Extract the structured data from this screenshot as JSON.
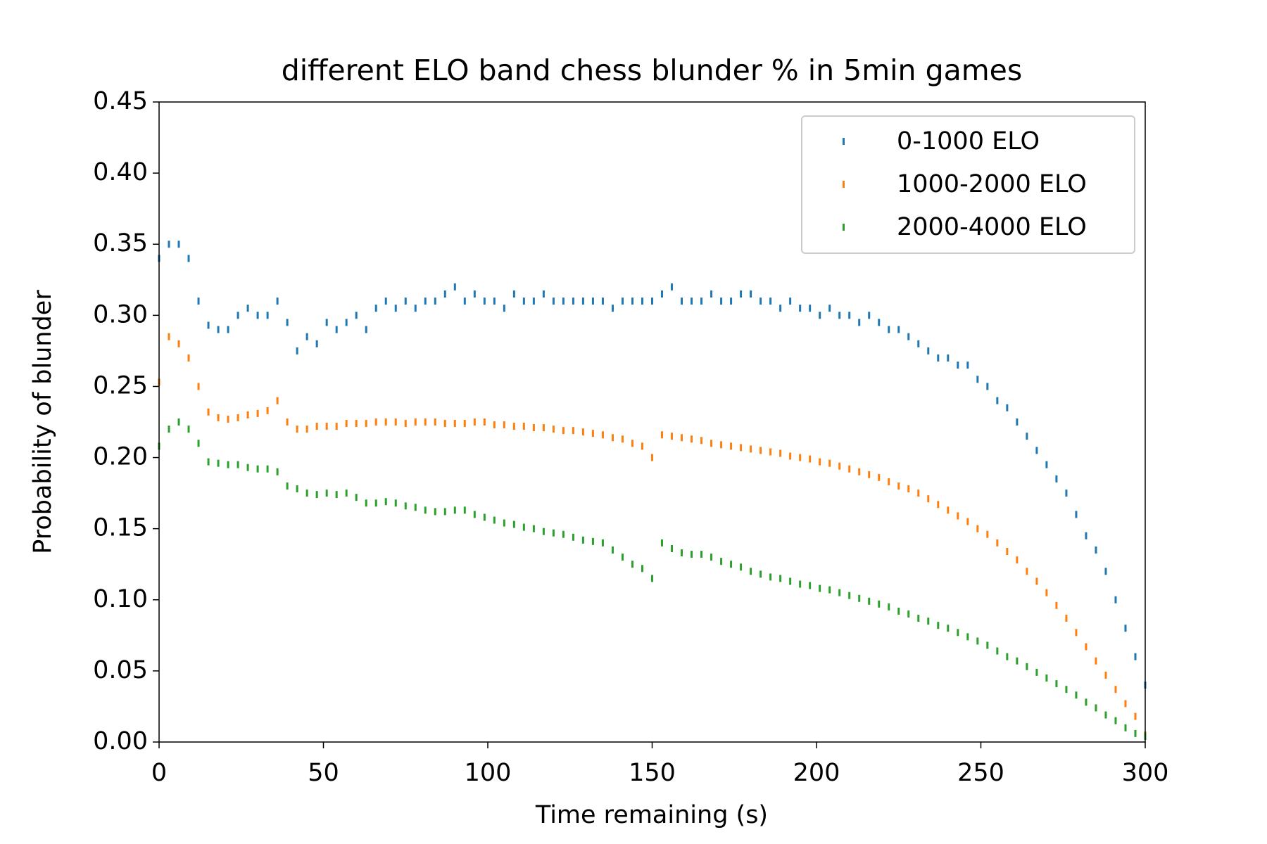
{
  "chart_data": {
    "type": "scatter",
    "title": "different ELO band chess blunder % in 5min games",
    "x_label": "Time remaining (s)",
    "y_label": "Probability of blunder",
    "x": [
      0,
      3,
      6,
      9,
      12,
      15,
      18,
      21,
      24,
      27,
      30,
      33,
      36,
      39,
      42,
      45,
      48,
      51,
      54,
      57,
      60,
      63,
      66,
      69,
      72,
      75,
      78,
      81,
      84,
      87,
      90,
      93,
      96,
      99,
      102,
      105,
      108,
      111,
      114,
      117,
      120,
      123,
      126,
      129,
      132,
      135,
      138,
      141,
      144,
      147,
      150,
      153,
      156,
      159,
      162,
      165,
      168,
      171,
      174,
      177,
      180,
      183,
      186,
      189,
      192,
      195,
      198,
      201,
      204,
      207,
      210,
      213,
      216,
      219,
      222,
      225,
      228,
      231,
      234,
      237,
      240,
      243,
      246,
      249,
      252,
      255,
      258,
      261,
      264,
      267,
      270,
      273,
      276,
      279,
      282,
      285,
      288,
      291,
      294,
      297,
      300
    ],
    "series": [
      {
        "name": "0-1000 ELO",
        "color": "#1f77b4",
        "values": [
          0.34,
          0.35,
          0.35,
          0.34,
          0.31,
          0.293,
          0.29,
          0.29,
          0.3,
          0.305,
          0.3,
          0.3,
          0.31,
          0.295,
          0.275,
          0.285,
          0.28,
          0.295,
          0.29,
          0.295,
          0.3,
          0.29,
          0.305,
          0.31,
          0.305,
          0.31,
          0.305,
          0.31,
          0.31,
          0.315,
          0.32,
          0.31,
          0.315,
          0.31,
          0.31,
          0.305,
          0.315,
          0.31,
          0.31,
          0.315,
          0.31,
          0.31,
          0.31,
          0.31,
          0.31,
          0.31,
          0.305,
          0.31,
          0.31,
          0.31,
          0.31,
          0.315,
          0.32,
          0.31,
          0.31,
          0.31,
          0.315,
          0.31,
          0.31,
          0.315,
          0.315,
          0.31,
          0.31,
          0.305,
          0.31,
          0.305,
          0.305,
          0.3,
          0.305,
          0.3,
          0.3,
          0.295,
          0.3,
          0.295,
          0.29,
          0.29,
          0.285,
          0.28,
          0.275,
          0.27,
          0.27,
          0.265,
          0.265,
          0.255,
          0.25,
          0.24,
          0.235,
          0.225,
          0.215,
          0.205,
          0.195,
          0.185,
          0.175,
          0.16,
          0.145,
          0.135,
          0.12,
          0.1,
          0.08,
          0.06,
          0.04
        ]
      },
      {
        "name": "1000-2000 ELO",
        "color": "#ff7f0e",
        "values": [
          0.253,
          0.285,
          0.28,
          0.27,
          0.25,
          0.232,
          0.228,
          0.227,
          0.228,
          0.23,
          0.231,
          0.233,
          0.24,
          0.225,
          0.22,
          0.22,
          0.222,
          0.222,
          0.222,
          0.224,
          0.224,
          0.224,
          0.225,
          0.225,
          0.225,
          0.224,
          0.225,
          0.225,
          0.225,
          0.224,
          0.224,
          0.224,
          0.225,
          0.225,
          0.223,
          0.223,
          0.222,
          0.222,
          0.221,
          0.221,
          0.22,
          0.219,
          0.219,
          0.218,
          0.217,
          0.216,
          0.214,
          0.213,
          0.21,
          0.208,
          0.2,
          0.216,
          0.215,
          0.214,
          0.213,
          0.212,
          0.21,
          0.209,
          0.208,
          0.207,
          0.206,
          0.205,
          0.204,
          0.203,
          0.201,
          0.2,
          0.199,
          0.197,
          0.196,
          0.194,
          0.192,
          0.19,
          0.188,
          0.186,
          0.183,
          0.18,
          0.178,
          0.175,
          0.171,
          0.167,
          0.163,
          0.159,
          0.155,
          0.15,
          0.146,
          0.14,
          0.134,
          0.128,
          0.12,
          0.113,
          0.105,
          0.096,
          0.087,
          0.077,
          0.067,
          0.057,
          0.047,
          0.037,
          0.027,
          0.018,
          0.005
        ]
      },
      {
        "name": "2000-4000 ELO",
        "color": "#2ca02c",
        "values": [
          0.208,
          0.22,
          0.225,
          0.22,
          0.21,
          0.197,
          0.196,
          0.195,
          0.195,
          0.193,
          0.192,
          0.192,
          0.19,
          0.18,
          0.178,
          0.175,
          0.174,
          0.175,
          0.174,
          0.175,
          0.172,
          0.168,
          0.168,
          0.169,
          0.168,
          0.166,
          0.165,
          0.163,
          0.162,
          0.162,
          0.163,
          0.163,
          0.16,
          0.158,
          0.156,
          0.154,
          0.153,
          0.151,
          0.15,
          0.148,
          0.147,
          0.146,
          0.144,
          0.142,
          0.141,
          0.14,
          0.135,
          0.13,
          0.125,
          0.122,
          0.115,
          0.14,
          0.136,
          0.133,
          0.132,
          0.132,
          0.13,
          0.127,
          0.125,
          0.123,
          0.12,
          0.118,
          0.116,
          0.115,
          0.113,
          0.111,
          0.11,
          0.108,
          0.107,
          0.105,
          0.103,
          0.101,
          0.099,
          0.097,
          0.095,
          0.092,
          0.09,
          0.087,
          0.085,
          0.082,
          0.08,
          0.077,
          0.074,
          0.071,
          0.068,
          0.064,
          0.06,
          0.057,
          0.053,
          0.049,
          0.045,
          0.041,
          0.037,
          0.033,
          0.028,
          0.024,
          0.019,
          0.015,
          0.01,
          0.006,
          0.004
        ]
      }
    ],
    "xlim": [
      0,
      300
    ],
    "xticks": [
      0,
      50,
      100,
      150,
      200,
      250,
      300
    ],
    "ylim": [
      0,
      0.45
    ],
    "yticks": [
      {
        "value": 0,
        "label": "0.00"
      },
      {
        "value": 0.05,
        "label": "0.05"
      },
      {
        "value": 0.1,
        "label": "0.10"
      },
      {
        "value": 0.15,
        "label": "0.15"
      },
      {
        "value": 0.2,
        "label": "0.20"
      },
      {
        "value": 0.25,
        "label": "0.25"
      },
      {
        "value": 0.3,
        "label": "0.30"
      },
      {
        "value": 0.35,
        "label": "0.35"
      },
      {
        "value": 0.4,
        "label": "0.40"
      },
      {
        "value": 0.45,
        "label": "0.45"
      }
    ],
    "legend": "upper right"
  }
}
